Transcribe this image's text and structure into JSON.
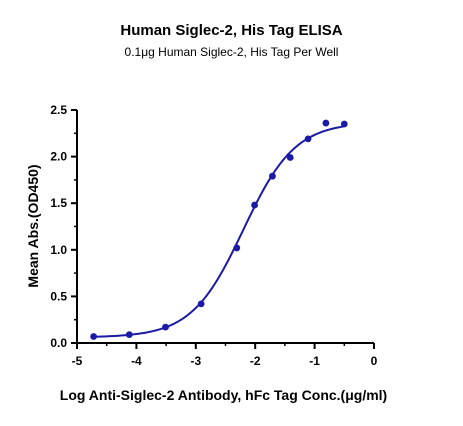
{
  "chart_data": {
    "type": "scatter",
    "title": "Human Siglec-2, His Tag ELISA",
    "subtitle": "0.1μg Human Siglec-2, His Tag Per Well",
    "xlabel": "Log Anti-Siglec-2 Antibody, hFc Tag Conc.(μg/ml)",
    "ylabel": "Mean Abs.(OD450)",
    "xlim": [
      -5,
      0
    ],
    "ylim": [
      0,
      2.5
    ],
    "x_ticks": [
      "-5",
      "-4",
      "-3",
      "-2",
      "-1",
      "0"
    ],
    "y_ticks": [
      "0.0",
      "0.5",
      "1.0",
      "1.5",
      "2.0",
      "2.5"
    ],
    "grid": false,
    "legend": "none",
    "series": [
      {
        "color": "#1a1aa6",
        "points": [
          {
            "x": -4.72,
            "y": 0.07
          },
          {
            "x": -4.12,
            "y": 0.09
          },
          {
            "x": -3.51,
            "y": 0.17
          },
          {
            "x": -2.91,
            "y": 0.42
          },
          {
            "x": -2.31,
            "y": 1.02
          },
          {
            "x": -2.01,
            "y": 1.48
          },
          {
            "x": -1.71,
            "y": 1.79
          },
          {
            "x": -1.41,
            "y": 1.99
          },
          {
            "x": -1.11,
            "y": 2.19
          },
          {
            "x": -0.81,
            "y": 2.36
          },
          {
            "x": -0.5,
            "y": 2.35
          }
        ],
        "fit_curve": {
          "model": "4PL",
          "bottom": 0.06,
          "top": 2.37,
          "log_ec50": -2.2,
          "hill": 1.0,
          "x_range": [
            -4.72,
            -0.5
          ]
        }
      }
    ]
  }
}
